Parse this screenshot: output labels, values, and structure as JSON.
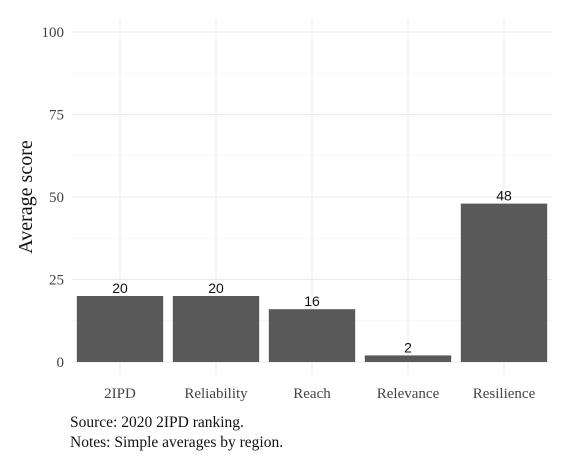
{
  "chart_data": {
    "type": "bar",
    "categories": [
      "2IPD",
      "Reliability",
      "Reach",
      "Relevance",
      "Resilience"
    ],
    "values": [
      20,
      20,
      16,
      2,
      48
    ],
    "data_labels": [
      "20",
      "20",
      "16",
      "2",
      "48"
    ],
    "title": "",
    "xlabel": "",
    "ylabel": "Average score",
    "ylim": [
      0,
      100
    ],
    "yticks": [
      0,
      25,
      50,
      75,
      100
    ],
    "grid": true,
    "legend": "none",
    "bar_color": "#595959",
    "grid_color": "#ebebeb"
  },
  "caption": {
    "source": "Source: 2020 2IPD ranking.",
    "notes": "Notes: Simple averages by region."
  }
}
